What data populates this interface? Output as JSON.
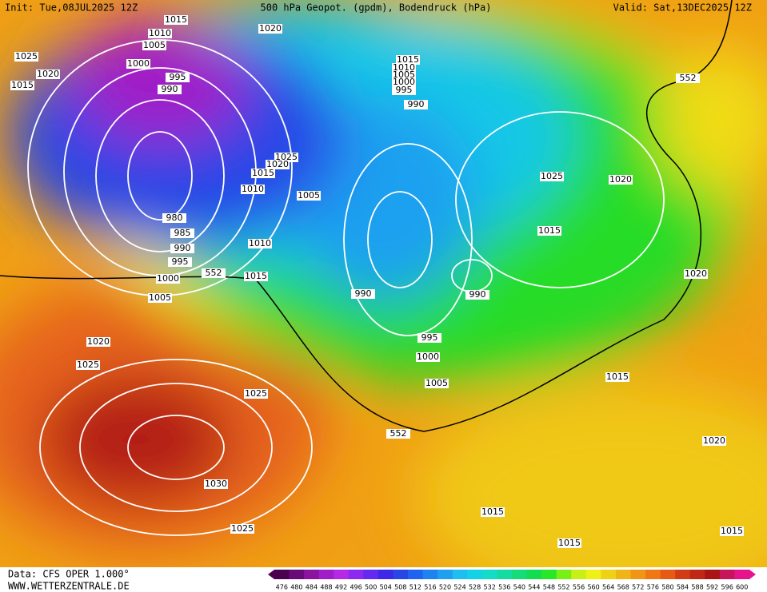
{
  "header": {
    "init": "Init: Tue,08JUL2025 12Z",
    "title": "500 hPa Geopot. (gpdm), Bodendruck (hPa)",
    "valid": "Valid: Sat,13DEC2025 12Z"
  },
  "isobar_labels": [
    "1015",
    "1010",
    "1005",
    "1020",
    "1025",
    "1020",
    "1015",
    "1000",
    "995",
    "990",
    "1015",
    "1010",
    "1005",
    "1000",
    "995",
    "990",
    "552",
    "1025",
    "1020",
    "1015",
    "1010",
    "1005",
    "1025",
    "1020",
    "980",
    "985",
    "990",
    "995",
    "1010",
    "1015",
    "552",
    "1015",
    "1000",
    "1005",
    "990",
    "990",
    "1020",
    "1020",
    "995",
    "1000",
    "1025",
    "1005",
    "1015",
    "1025",
    "552",
    "1020",
    "1030",
    "1015",
    "1025",
    "1015",
    "1015"
  ],
  "colorbar": {
    "values": [
      476,
      480,
      484,
      488,
      492,
      496,
      500,
      504,
      508,
      512,
      516,
      520,
      524,
      528,
      532,
      536,
      540,
      544,
      548,
      552,
      556,
      560,
      564,
      568,
      572,
      576,
      580,
      584,
      588,
      592,
      596,
      600
    ],
    "colors": [
      "#4b0050",
      "#6a0a78",
      "#8a14a0",
      "#a01ec8",
      "#b428e6",
      "#8c28f0",
      "#6428f0",
      "#3c28e6",
      "#2846e6",
      "#1e64f0",
      "#1e82f0",
      "#1ea0f0",
      "#1ebef0",
      "#14d2e6",
      "#14dcc8",
      "#14dca0",
      "#14dc78",
      "#14dc50",
      "#28e628",
      "#78f014",
      "#c8f014",
      "#f0f014",
      "#f0d214",
      "#f0b414",
      "#f09614",
      "#f07814",
      "#e65a14",
      "#d23c14",
      "#be2814",
      "#aa1414",
      "#c8145a",
      "#e6148c"
    ]
  },
  "footer": {
    "data": "Data: CFS OPER 1.000°",
    "site": "WWW.WETTERZENTRALE.DE"
  }
}
